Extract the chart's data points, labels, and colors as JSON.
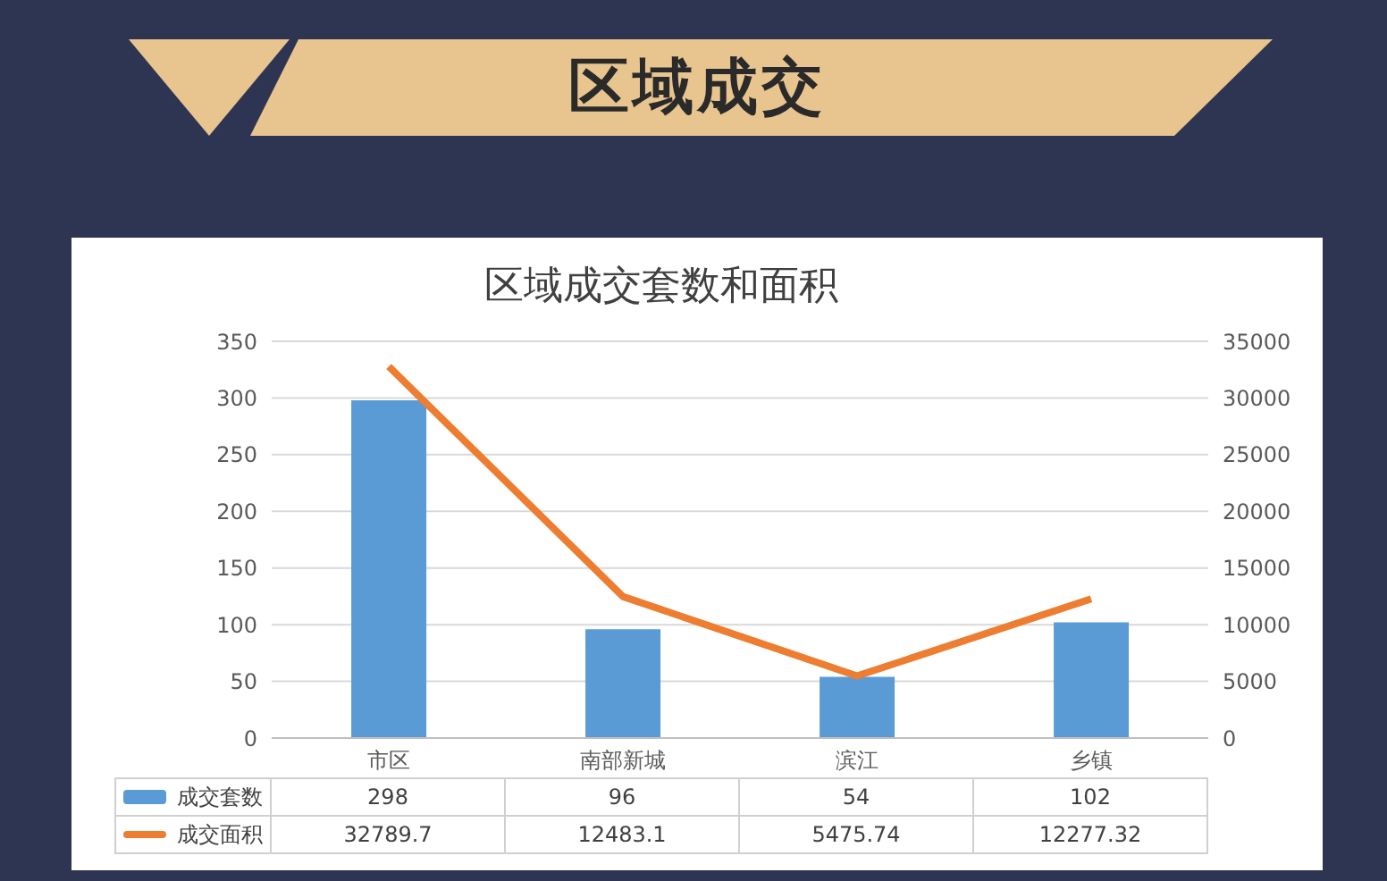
{
  "chart_data": {
    "type": "bar",
    "title": "区域成交",
    "subtitle": "区域成交套数和面积",
    "categories": [
      "市区",
      "南部新城",
      "滨江",
      "乡镇"
    ],
    "series": [
      {
        "name": "成交套数",
        "color": "#5b9bd5",
        "values": [
          298,
          96,
          54,
          102
        ]
      },
      {
        "name": "成交面积",
        "type": "line",
        "axis": "y2",
        "color": "#ed7d31",
        "values": [
          32789.7,
          12483.1,
          5475.74,
          12277.32
        ]
      }
    ],
    "ylim": [
      0,
      350
    ],
    "yticks": [
      0,
      50,
      100,
      150,
      200,
      250,
      300,
      350
    ],
    "y2lim": [
      0,
      35000
    ],
    "y2ticks": [
      0,
      5000,
      10000,
      15000,
      20000,
      25000,
      30000,
      35000
    ],
    "grid": "y",
    "legend": "bottom",
    "data_labels": true,
    "marker": "none"
  }
}
